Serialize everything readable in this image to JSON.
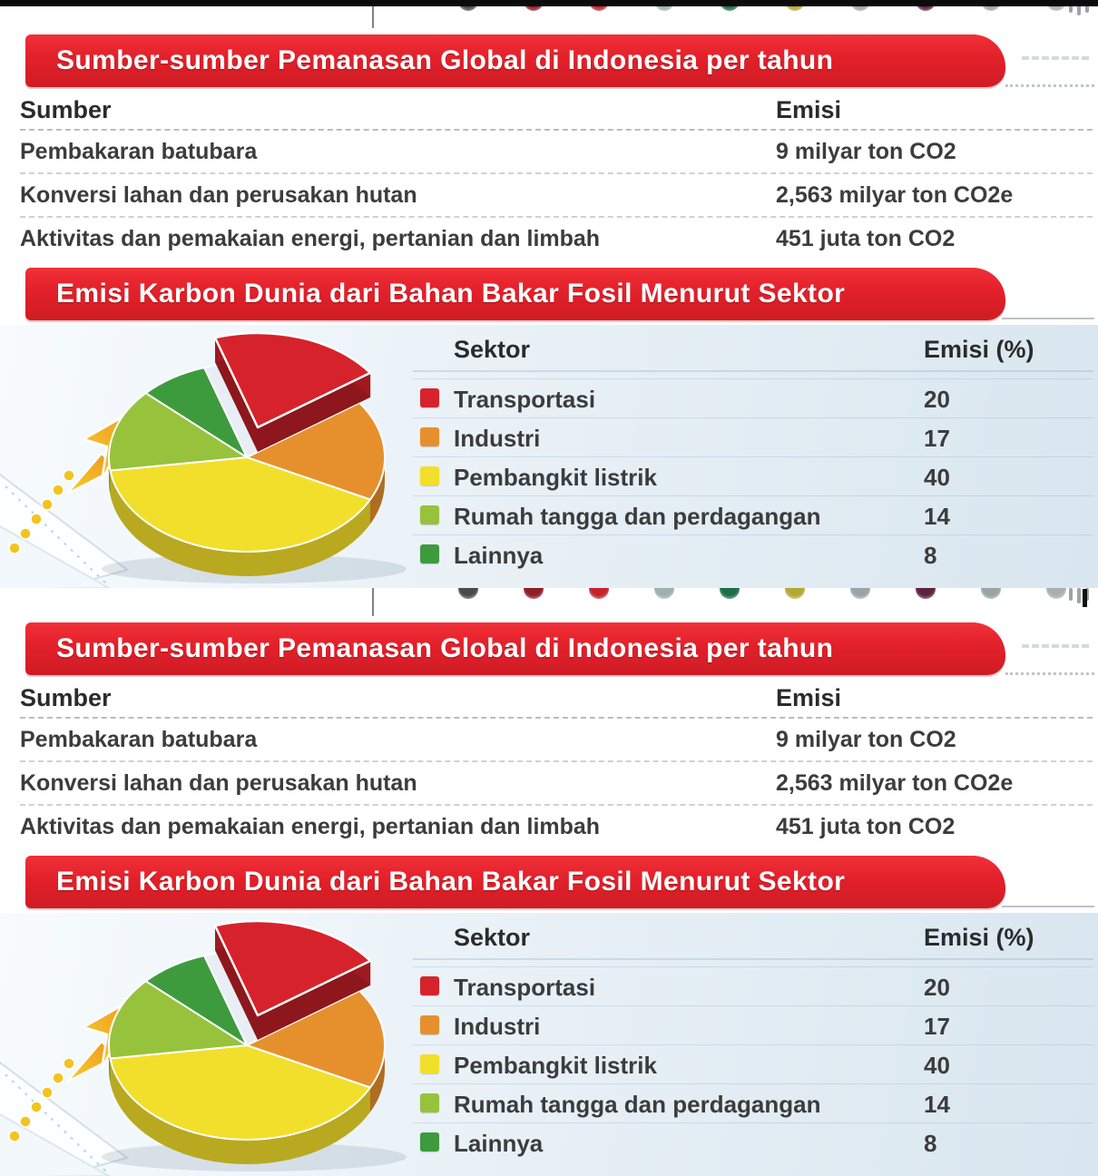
{
  "banner_sources": {
    "title": "Sumber-sumber Pemanasan Global di Indonesia per tahun",
    "color": "#e2202a"
  },
  "table": {
    "col_source": "Sumber",
    "col_emission": "Emisi",
    "rows": [
      {
        "source": "Pembakaran batubara",
        "emission": "9 milyar ton CO2"
      },
      {
        "source": "Konversi lahan dan perusakan hutan",
        "emission": "2,563 milyar ton CO2e"
      },
      {
        "source": "Aktivitas dan pemakaian energi, pertanian dan limbah",
        "emission": "451 juta ton CO2"
      }
    ]
  },
  "chart_data": {
    "type": "pie",
    "title": "Emisi Karbon Dunia dari Bahan Bakar Fosil Menurut Sektor",
    "legend_header_label": "Sektor",
    "legend_header_value": "Emisi (%)",
    "labels": [
      "Transportasi",
      "Industri",
      "Pembangkit listrik",
      "Rumah tangga dan perdagangan",
      "Lainnya"
    ],
    "values": [
      20,
      17,
      40,
      14,
      8
    ],
    "colors": [
      "#d6232b",
      "#e6902d",
      "#f2df2b",
      "#97c23c",
      "#3d9b3d"
    ],
    "unit": "percent",
    "style": "3d-exploded",
    "exploded_slice": "Transportasi",
    "legend_position": "right"
  },
  "decor": {
    "icon_circles": [
      "#4a4a4a",
      "#8e1f28",
      "#c5232b",
      "#9fb0ac",
      "#1f6e46",
      "#b5a832",
      "#9aa4a8",
      "#5e2340",
      "#9aa4a8",
      "#a8b0b4"
    ],
    "top_bar_color": "#0b0b0b",
    "chart_bg_tint": "#e3edf4"
  }
}
